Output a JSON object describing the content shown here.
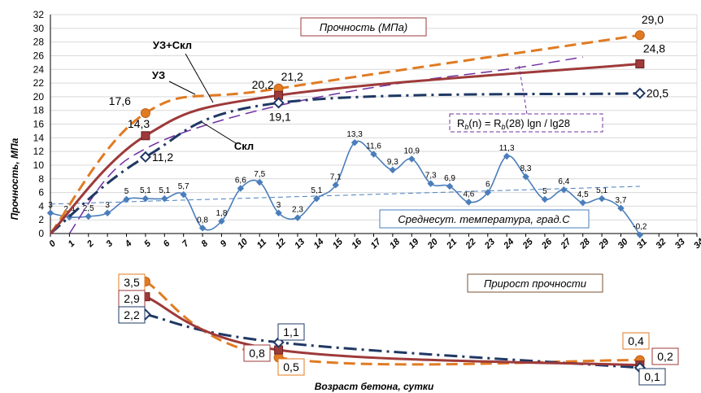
{
  "chart_data": [
    {
      "type": "line",
      "title": "Прочность (МПа)",
      "xlabel": "Возраст бетона, сутки",
      "ylabel": "Прочность, МПа",
      "xlim": [
        0,
        34
      ],
      "ylim": [
        0,
        32
      ],
      "x_ticks": [
        0,
        1,
        2,
        3,
        4,
        5,
        6,
        7,
        8,
        9,
        10,
        11,
        12,
        13,
        14,
        15,
        16,
        17,
        18,
        19,
        20,
        21,
        22,
        23,
        24,
        25,
        26,
        27,
        28,
        29,
        30,
        31,
        32,
        33,
        34
      ],
      "y_ticks": [
        0,
        2,
        4,
        6,
        8,
        10,
        12,
        14,
        16,
        18,
        20,
        22,
        24,
        26,
        28,
        30,
        32
      ],
      "series": [
        {
          "name": "УЗ+Скл",
          "color": "#9e3a3a",
          "style": "solid",
          "points": [
            [
              0,
              0
            ],
            [
              5,
              14.3
            ],
            [
              12,
              20.2
            ],
            [
              31,
              24.8
            ]
          ],
          "labels": [
            "14,3",
            "20,2",
            "24,8"
          ]
        },
        {
          "name": "УЗ",
          "color": "#e07b23",
          "style": "dashed",
          "points": [
            [
              0,
              0
            ],
            [
              5,
              17.6
            ],
            [
              12,
              21.2
            ],
            [
              31,
              29.0
            ]
          ],
          "labels": [
            "17,6",
            "21,2",
            "29,0"
          ]
        },
        {
          "name": "Скл",
          "color": "#1f3864",
          "style": "dash-dot",
          "points": [
            [
              0,
              0
            ],
            [
              5,
              11.2
            ],
            [
              12,
              19.1
            ],
            [
              31,
              20.5
            ]
          ],
          "labels": [
            "11,2",
            "19,1",
            "20,5"
          ]
        },
        {
          "name": "Rb(n) = Rb(28) lgn / lg28",
          "color": "#7030a0",
          "style": "dashed",
          "points": [
            [
              1,
              0
            ],
            [
              3,
              8.2
            ],
            [
              5,
              12.4
            ],
            [
              8,
              15.7
            ],
            [
              12,
              18.7
            ],
            [
              16,
              20.9
            ],
            [
              20,
              22.6
            ],
            [
              24,
              24.0
            ],
            [
              28,
              25.8
            ]
          ]
        },
        {
          "name": "Среднесут. температура, град.С",
          "color": "#4a7ebb",
          "style": "solid",
          "x": [
            0,
            1,
            2,
            3,
            4,
            5,
            6,
            7,
            8,
            9,
            10,
            11,
            12,
            13,
            14,
            15,
            16,
            17,
            18,
            19,
            20,
            21,
            22,
            23,
            24,
            25,
            26,
            27,
            28,
            29,
            30,
            31
          ],
          "values": [
            3,
            2.4,
            2.5,
            3,
            5,
            5.1,
            5.1,
            5.7,
            0.8,
            1.8,
            6.6,
            7.5,
            3,
            2.3,
            5.1,
            7.1,
            13.3,
            11.6,
            9.3,
            10.9,
            7.3,
            6.9,
            4.6,
            6,
            11.3,
            8.3,
            5,
            6.4,
            4.5,
            5.1,
            3.7,
            -0.2
          ],
          "labels": [
            "3",
            "2,4",
            "2,5",
            "3",
            "5",
            "5,1",
            "5,1",
            "5,7",
            "0,8",
            "1,8",
            "6,6",
            "7,5",
            "3",
            "2,3",
            "5,1",
            "7,1",
            "13,3",
            "11,6",
            "9,3",
            "10,9",
            "7,3",
            "6,9",
            "4,6",
            "6",
            "11,3",
            "8,3",
            "5",
            "6,4",
            "4,5",
            "5,1",
            "3,7",
            "-0,2"
          ]
        },
        {
          "name": "trend",
          "color": "#4a7ebb",
          "style": "dashed-thin",
          "points": [
            [
              0,
              4.3
            ],
            [
              31,
              6.9
            ]
          ]
        }
      ],
      "legend_labels": {
        "uz_skl": "УЗ+Скл",
        "uz": "УЗ",
        "skl": "Скл"
      },
      "formula": {
        "R": "R",
        "b": "b",
        "expr1": "(n) = R",
        "expr2": "(28) lgn / lg28"
      },
      "temp_box": "Среднесут. температура, град.С"
    },
    {
      "type": "line",
      "title": "Прирост прочности",
      "series": [
        {
          "name": "УЗ",
          "color": "#e07b23",
          "style": "dashed",
          "points": [
            [
              5,
              3.5
            ],
            [
              12,
              0.5
            ],
            [
              31,
              0.4
            ]
          ],
          "labels": [
            "3,5",
            "0,5",
            "0,4"
          ]
        },
        {
          "name": "УЗ+Скл",
          "color": "#9e3a3a",
          "style": "solid",
          "points": [
            [
              5,
              2.9
            ],
            [
              12,
              0.8
            ],
            [
              31,
              0.2
            ]
          ],
          "labels": [
            "2,9",
            "0,8",
            "0,2"
          ]
        },
        {
          "name": "Скл",
          "color": "#1f3864",
          "style": "dash-dot",
          "points": [
            [
              5,
              2.2
            ],
            [
              12,
              1.1
            ],
            [
              31,
              0.1
            ]
          ],
          "labels": [
            "2,2",
            "1,1",
            "0,1"
          ]
        }
      ]
    }
  ]
}
